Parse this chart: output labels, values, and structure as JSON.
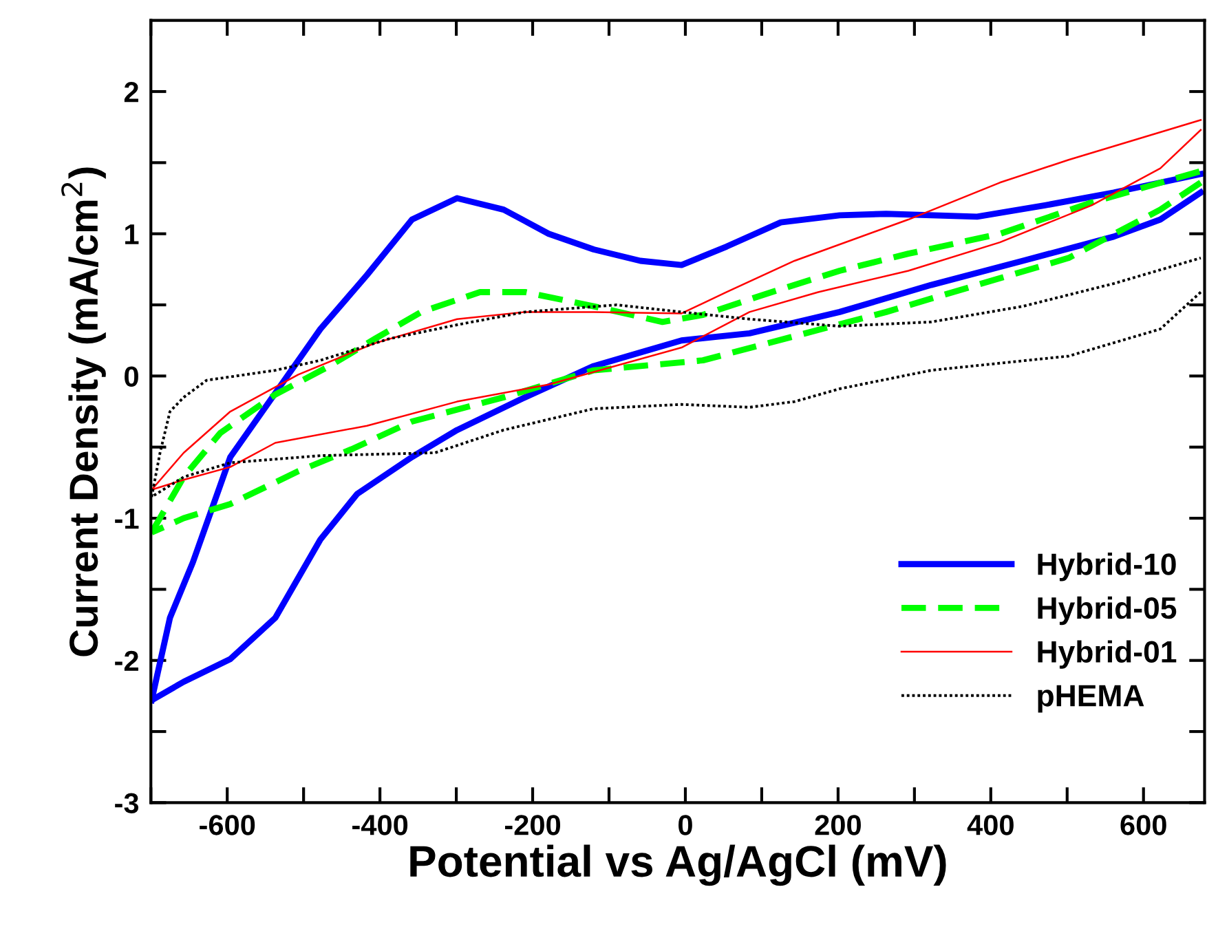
{
  "chart_data": {
    "type": "line",
    "xlabel": "Potential vs Ag/AgCl (mV)",
    "ylabel": "Current Density (mA/cm$^{2}$)",
    "xlim": [
      -700,
      680
    ],
    "ylim": [
      -3,
      2.5
    ],
    "xticks": [
      {
        "value": -700,
        "label": null
      },
      -600,
      {
        "value": -500,
        "label": null
      },
      -400,
      {
        "value": -300,
        "label": null
      },
      -200,
      {
        "value": -100,
        "label": null
      },
      0,
      {
        "value": 100,
        "label": null
      },
      200,
      {
        "value": 300,
        "label": null
      },
      400,
      {
        "value": 500,
        "label": null
      },
      600
    ],
    "yticks": [
      -3,
      {
        "value": -2.5,
        "label": null
      },
      -2,
      {
        "value": -1.5,
        "label": null
      },
      -1,
      {
        "value": -0.5,
        "label": null
      },
      0,
      {
        "value": 0.5,
        "label": null
      },
      1,
      {
        "value": 1.5,
        "label": null
      },
      2
    ],
    "grid": false,
    "legend": "bottom right",
    "marker": "none",
    "series": [
      {
        "name": "Hybrid-10",
        "color": "#0000ff",
        "line_style": "solid",
        "x": [
          -699,
          -675,
          -645,
          -596,
          -478,
          -417,
          -358,
          -299,
          -238,
          -179,
          -120,
          -59,
          -5,
          54,
          125,
          202,
          263,
          382,
          471,
          561,
          675
        ],
        "values": [
          -2.28,
          -1.7,
          -1.31,
          -0.57,
          0.33,
          0.71,
          1.1,
          1.25,
          1.17,
          1.0,
          0.89,
          0.81,
          0.78,
          0.91,
          1.08,
          1.13,
          1.14,
          1.12,
          1.2,
          1.29,
          1.42
        ]
      },
      {
        "color": "#0000ff",
        "line_style": "solid",
        "x": [
          675,
          622,
          561,
          442,
          322,
          202,
          84,
          -5,
          -120,
          -210,
          -299,
          -358,
          -430,
          -478,
          -537,
          -596,
          -657,
          -699
        ],
        "values": [
          1.29,
          1.1,
          0.98,
          0.81,
          0.64,
          0.45,
          0.3,
          0.25,
          0.07,
          -0.15,
          -0.38,
          -0.57,
          -0.83,
          -1.15,
          -1.7,
          -1.99,
          -2.15,
          -2.28
        ]
      },
      {
        "name": "Hybrid-05",
        "color": "#00ff00",
        "line_style": "dashed",
        "x": [
          -699,
          -657,
          -609,
          -537,
          -466,
          -407,
          -346,
          -269,
          -210,
          -120,
          -30,
          23,
          113,
          202,
          292,
          412,
          532,
          675
        ],
        "values": [
          -1.1,
          -0.71,
          -0.4,
          -0.13,
          0.07,
          0.26,
          0.45,
          0.59,
          0.59,
          0.49,
          0.38,
          0.43,
          0.59,
          0.74,
          0.86,
          1.0,
          1.22,
          1.44
        ]
      },
      {
        "color": "#00ff00",
        "line_style": "dashed",
        "x": [
          675,
          622,
          502,
          382,
          263,
          143,
          23,
          -120,
          -238,
          -358,
          -435,
          -507,
          -596,
          -657,
          -699
        ],
        "values": [
          1.36,
          1.17,
          0.83,
          0.64,
          0.45,
          0.28,
          0.11,
          0.04,
          -0.15,
          -0.32,
          -0.51,
          -0.67,
          -0.9,
          -1.0,
          -1.1
        ]
      },
      {
        "name": "Hybrid-01",
        "color": "#ff0000",
        "line_style": "solid",
        "x": [
          -699,
          -657,
          -596,
          -507,
          -407,
          -299,
          -210,
          -120,
          -5,
          54,
          143,
          292,
          412,
          502,
          675
        ],
        "values": [
          -0.8,
          -0.54,
          -0.25,
          0.01,
          0.23,
          0.4,
          0.45,
          0.45,
          0.44,
          0.59,
          0.81,
          1.1,
          1.36,
          1.52,
          1.8
        ]
      },
      {
        "color": "#ff0000",
        "line_style": "solid",
        "x": [
          675,
          622,
          532,
          412,
          292,
          174,
          84,
          -5,
          -179,
          -299,
          -417,
          -537,
          -596,
          -657,
          -699
        ],
        "values": [
          1.73,
          1.46,
          1.2,
          0.94,
          0.74,
          0.59,
          0.45,
          0.2,
          -0.06,
          -0.18,
          -0.35,
          -0.47,
          -0.64,
          -0.73,
          -0.8
        ]
      },
      {
        "name": "pHEMA",
        "color": "#000000",
        "line_style": "dotted",
        "x": [
          -699,
          -688,
          -675,
          -657,
          -627,
          -537,
          -478,
          -389,
          -299,
          -210,
          -90,
          -5,
          84,
          202,
          322,
          442,
          561,
          675
        ],
        "values": [
          -0.85,
          -0.54,
          -0.25,
          -0.15,
          -0.03,
          0.04,
          0.11,
          0.26,
          0.36,
          0.45,
          0.5,
          0.45,
          0.4,
          0.35,
          0.38,
          0.49,
          0.65,
          0.83
        ]
      },
      {
        "color": "#000000",
        "line_style": "dotted",
        "x": [
          675,
          622,
          502,
          322,
          202,
          143,
          84,
          -5,
          -120,
          -238,
          -328,
          -478,
          -596,
          -657,
          -699
        ],
        "values": [
          0.59,
          0.33,
          0.14,
          0.04,
          -0.09,
          -0.18,
          -0.22,
          -0.2,
          -0.23,
          -0.38,
          -0.54,
          -0.56,
          -0.61,
          -0.71,
          -0.85
        ]
      }
    ]
  }
}
